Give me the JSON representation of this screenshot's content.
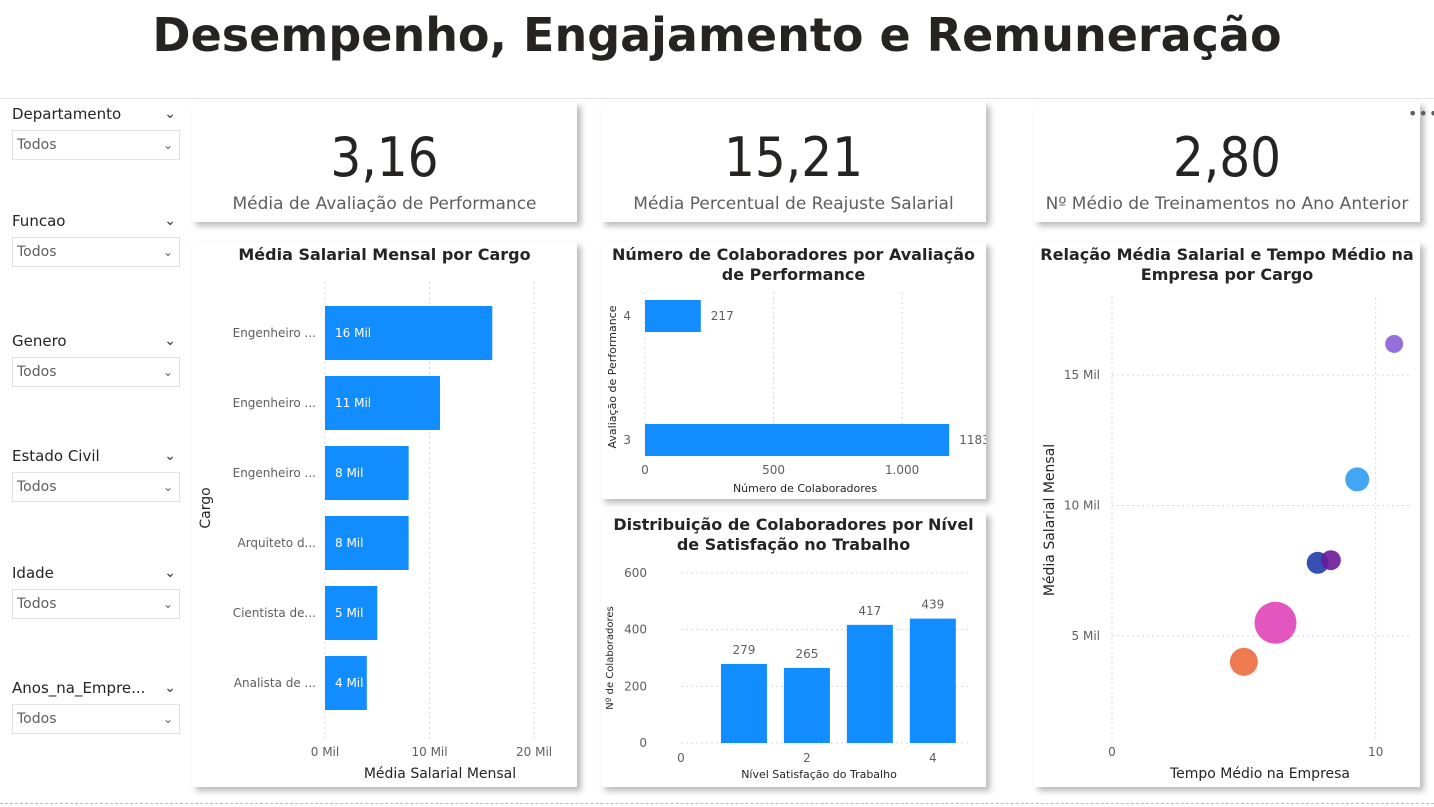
{
  "header": {
    "title": "Desempenho, Engajamento e Remuneração"
  },
  "slicers": [
    {
      "label": "Departamento",
      "value": "Todos"
    },
    {
      "label": "Funcao",
      "value": "Todos"
    },
    {
      "label": "Genero",
      "value": "Todos"
    },
    {
      "label": "Estado Civil",
      "value": "Todos"
    },
    {
      "label": "Idade",
      "value": "Todos"
    },
    {
      "label": "Anos_na_Empre...",
      "value": "Todos"
    }
  ],
  "kpis": [
    {
      "value": "3,16",
      "label": "Média de Avaliação de Performance"
    },
    {
      "value": "15,21",
      "label": "Média Percentual de Reajuste Salarial"
    },
    {
      "value": "2,80",
      "label": "Nº Médio de Treinamentos no Ano Anterior"
    }
  ],
  "colors": {
    "bar": "#118dff",
    "grid": "#d9d9d9"
  },
  "chart_data": [
    {
      "type": "bar",
      "orientation": "horizontal",
      "title": "Média Salarial Mensal por Cargo",
      "xlabel": "Média Salarial Mensal",
      "ylabel": "Cargo",
      "categories": [
        "Engenheiro ...",
        "Engenheiro ...",
        "Engenheiro ...",
        "Arquiteto d...",
        "Cientista de...",
        "Analista de ..."
      ],
      "values": [
        16,
        11,
        8,
        8,
        5,
        4
      ],
      "data_labels": [
        "16 Mil",
        "11 Mil",
        "8 Mil",
        "8 Mil",
        "5 Mil",
        "4 Mil"
      ],
      "xticks": [
        0,
        10,
        20
      ],
      "xtick_labels": [
        "0 Mil",
        "10 Mil",
        "20 Mil"
      ],
      "xlim": [
        0,
        22
      ]
    },
    {
      "type": "bar",
      "orientation": "horizontal",
      "title": "Número de Colaboradores por Avaliação de Performance",
      "xlabel": "Número de Colaboradores",
      "ylabel": "Avaliação de Performance",
      "categories": [
        "4",
        "3"
      ],
      "values": [
        217,
        1183
      ],
      "data_labels": [
        "217",
        "1183"
      ],
      "xticks": [
        0,
        500,
        1000
      ],
      "xtick_labels": [
        "0",
        "500",
        "1.000"
      ],
      "xlim": [
        0,
        1260
      ]
    },
    {
      "type": "bar",
      "title": "Distribuição de Colaboradores por Nível de Satisfação no Trabalho",
      "xlabel": "Nível Satisfação do Trabalho",
      "ylabel": "Nº de Colaboradores",
      "categories": [
        1,
        2,
        3,
        4
      ],
      "values": [
        279,
        265,
        417,
        439
      ],
      "data_labels": [
        "279",
        "265",
        "417",
        "439"
      ],
      "xticks": [
        0,
        2,
        4
      ],
      "xtick_labels": [
        "0",
        "2",
        "4"
      ],
      "xlim": [
        0,
        4.4
      ],
      "yticks": [
        0,
        200,
        400,
        600
      ],
      "ytick_labels": [
        "0",
        "200",
        "400",
        "600"
      ],
      "ylim": [
        0,
        600
      ]
    },
    {
      "type": "scatter",
      "title": "Relação Média Salarial e Tempo Médio na Empresa por Cargo",
      "xlabel": "Tempo Médio na Empresa",
      "ylabel": "Média Salarial Mensal",
      "xticks": [
        0,
        10
      ],
      "xtick_labels": [
        "0",
        "10"
      ],
      "yticks": [
        5,
        10,
        15
      ],
      "ytick_labels": [
        "5 Mil",
        "10 Mil",
        "15 Mil"
      ],
      "xlim": [
        0,
        11.3
      ],
      "ylim": [
        1,
        18
      ],
      "points": [
        {
          "x": 10.7,
          "y": 16.2,
          "size": 9,
          "color": "#8a5fd6"
        },
        {
          "x": 9.3,
          "y": 11.0,
          "size": 12,
          "color": "#2f9cf4"
        },
        {
          "x": 7.8,
          "y": 7.8,
          "size": 11,
          "color": "#1f3ea8"
        },
        {
          "x": 8.3,
          "y": 7.9,
          "size": 10,
          "color": "#6b1a9a"
        },
        {
          "x": 6.2,
          "y": 5.5,
          "size": 21,
          "color": "#e044b8"
        },
        {
          "x": 5.0,
          "y": 4.0,
          "size": 14,
          "color": "#ec6b3f"
        }
      ]
    }
  ]
}
